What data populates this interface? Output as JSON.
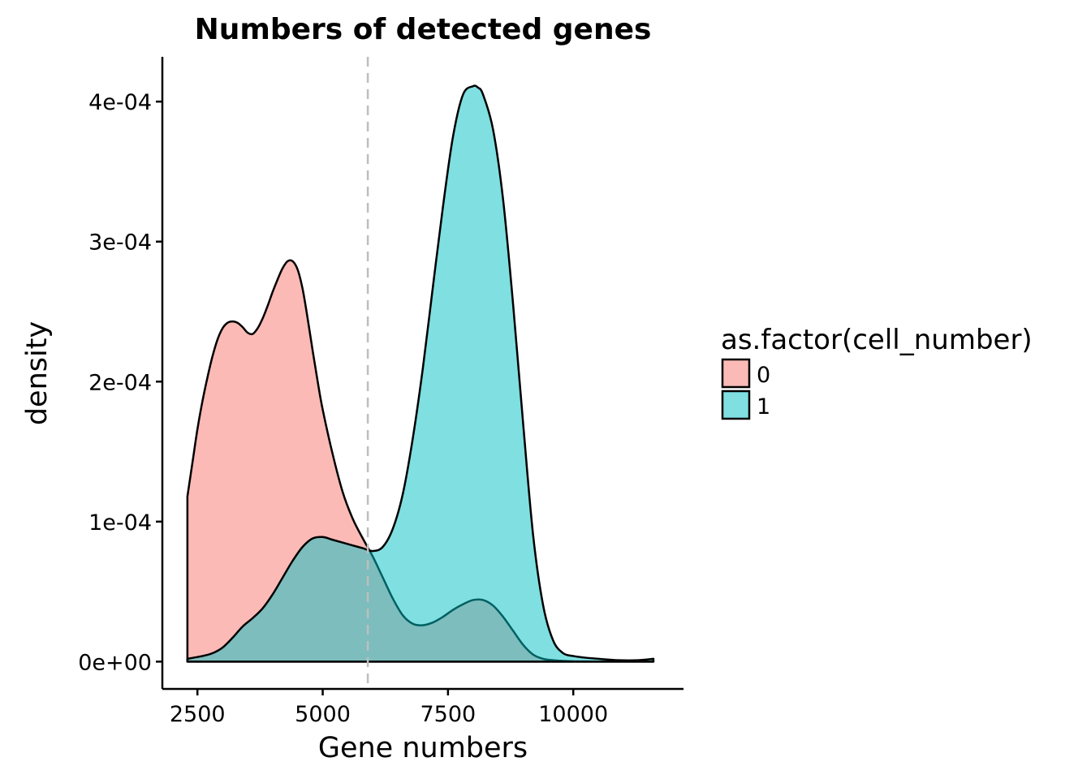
{
  "chart_data": {
    "type": "area",
    "title": "Numbers of detected genes",
    "xlabel": "Gene numbers",
    "ylabel": "density",
    "xlim": [
      1800,
      12200
    ],
    "ylim": [
      -1.95e-05,
      0.000432
    ],
    "xticks": [
      2500,
      5000,
      7500,
      10000
    ],
    "xtick_labels": [
      "2500",
      "5000",
      "7500",
      "10000"
    ],
    "yticks": [
      0,
      0.0001,
      0.0002,
      0.0003,
      0.0004
    ],
    "ytick_labels": [
      "0e+00",
      "1e-04",
      "2e-04",
      "3e-04",
      "4e-04"
    ],
    "vline": {
      "x": 5900,
      "style": "dashed",
      "color": "#BEBEBE"
    },
    "grid": false,
    "legend": {
      "title": "as.factor(cell_number)",
      "placement": "right"
    },
    "series": [
      {
        "name": "0",
        "color": "#F8766D",
        "x": [
          2300,
          2300,
          2400,
          2500,
          2600,
          2700,
          2800,
          2900,
          3000,
          3100,
          3200,
          3300,
          3400,
          3500,
          3600,
          3700,
          3800,
          3900,
          4000,
          4100,
          4200,
          4300,
          4400,
          4500,
          4600,
          4700,
          4800,
          4900,
          5000,
          5200,
          5400,
          5600,
          5800,
          6000,
          6200,
          6400,
          6600,
          6800,
          7000,
          7200,
          7400,
          7600,
          7800,
          8000,
          8200,
          8400,
          8600,
          8800,
          9000,
          9200,
          9400,
          9600,
          9800,
          10000,
          10200,
          10500,
          10900,
          11300,
          11600
        ],
        "y": [
          0,
          0.000118,
          0.000142,
          0.000166,
          0.000186,
          0.000203,
          0.000218,
          0.00023,
          0.000238,
          0.000242,
          0.000243,
          0.000242,
          0.000239,
          0.000235,
          0.000234,
          0.000238,
          0.000245,
          0.000254,
          0.000264,
          0.000273,
          0.000281,
          0.000286,
          0.000286,
          0.00028,
          0.000266,
          0.000245,
          0.000222,
          0.0002,
          0.00018,
          0.000148,
          0.000121,
          0.000102,
          8.8e-05,
          7.5e-05,
          6e-05,
          4.5e-05,
          3.3e-05,
          2.7e-05,
          2.6e-05,
          2.8e-05,
          3.2e-05,
          3.7e-05,
          4.1e-05,
          4.4e-05,
          4.4e-05,
          4e-05,
          3.2e-05,
          2.2e-05,
          1.2e-05,
          5e-06,
          2e-06,
          1e-06,
          5e-07,
          2e-07,
          1e-07,
          5e-08,
          0,
          0,
          0
        ]
      },
      {
        "name": "1",
        "color": "#00BFC4",
        "x": [
          2300,
          2600,
          2800,
          3000,
          3200,
          3400,
          3600,
          3800,
          4000,
          4200,
          4400,
          4600,
          4800,
          5000,
          5200,
          5400,
          5600,
          5800,
          6000,
          6200,
          6400,
          6600,
          6800,
          7000,
          7200,
          7400,
          7600,
          7800,
          8000,
          8100,
          8200,
          8400,
          8600,
          8800,
          9000,
          9200,
          9400,
          9600,
          9800,
          10000,
          10200,
          10500,
          10900,
          11300,
          11600
        ],
        "y": [
          2e-06,
          4e-06,
          6e-06,
          1e-05,
          1.7e-05,
          2.5e-05,
          3.1e-05,
          3.8e-05,
          4.8e-05,
          6e-05,
          7.2e-05,
          8.2e-05,
          8.8e-05,
          8.9e-05,
          8.7e-05,
          8.5e-05,
          8.3e-05,
          8.1e-05,
          7.9e-05,
          8.2e-05,
          9.5e-05,
          0.00012,
          0.00016,
          0.00021,
          0.000268,
          0.000325,
          0.000375,
          0.000405,
          0.000411,
          0.00041,
          0.000405,
          0.00038,
          0.00033,
          0.000255,
          0.00017,
          9e-05,
          4e-05,
          1.5e-05,
          6e-06,
          4e-06,
          3e-06,
          2e-06,
          1e-06,
          1e-06,
          2e-06
        ]
      }
    ]
  }
}
